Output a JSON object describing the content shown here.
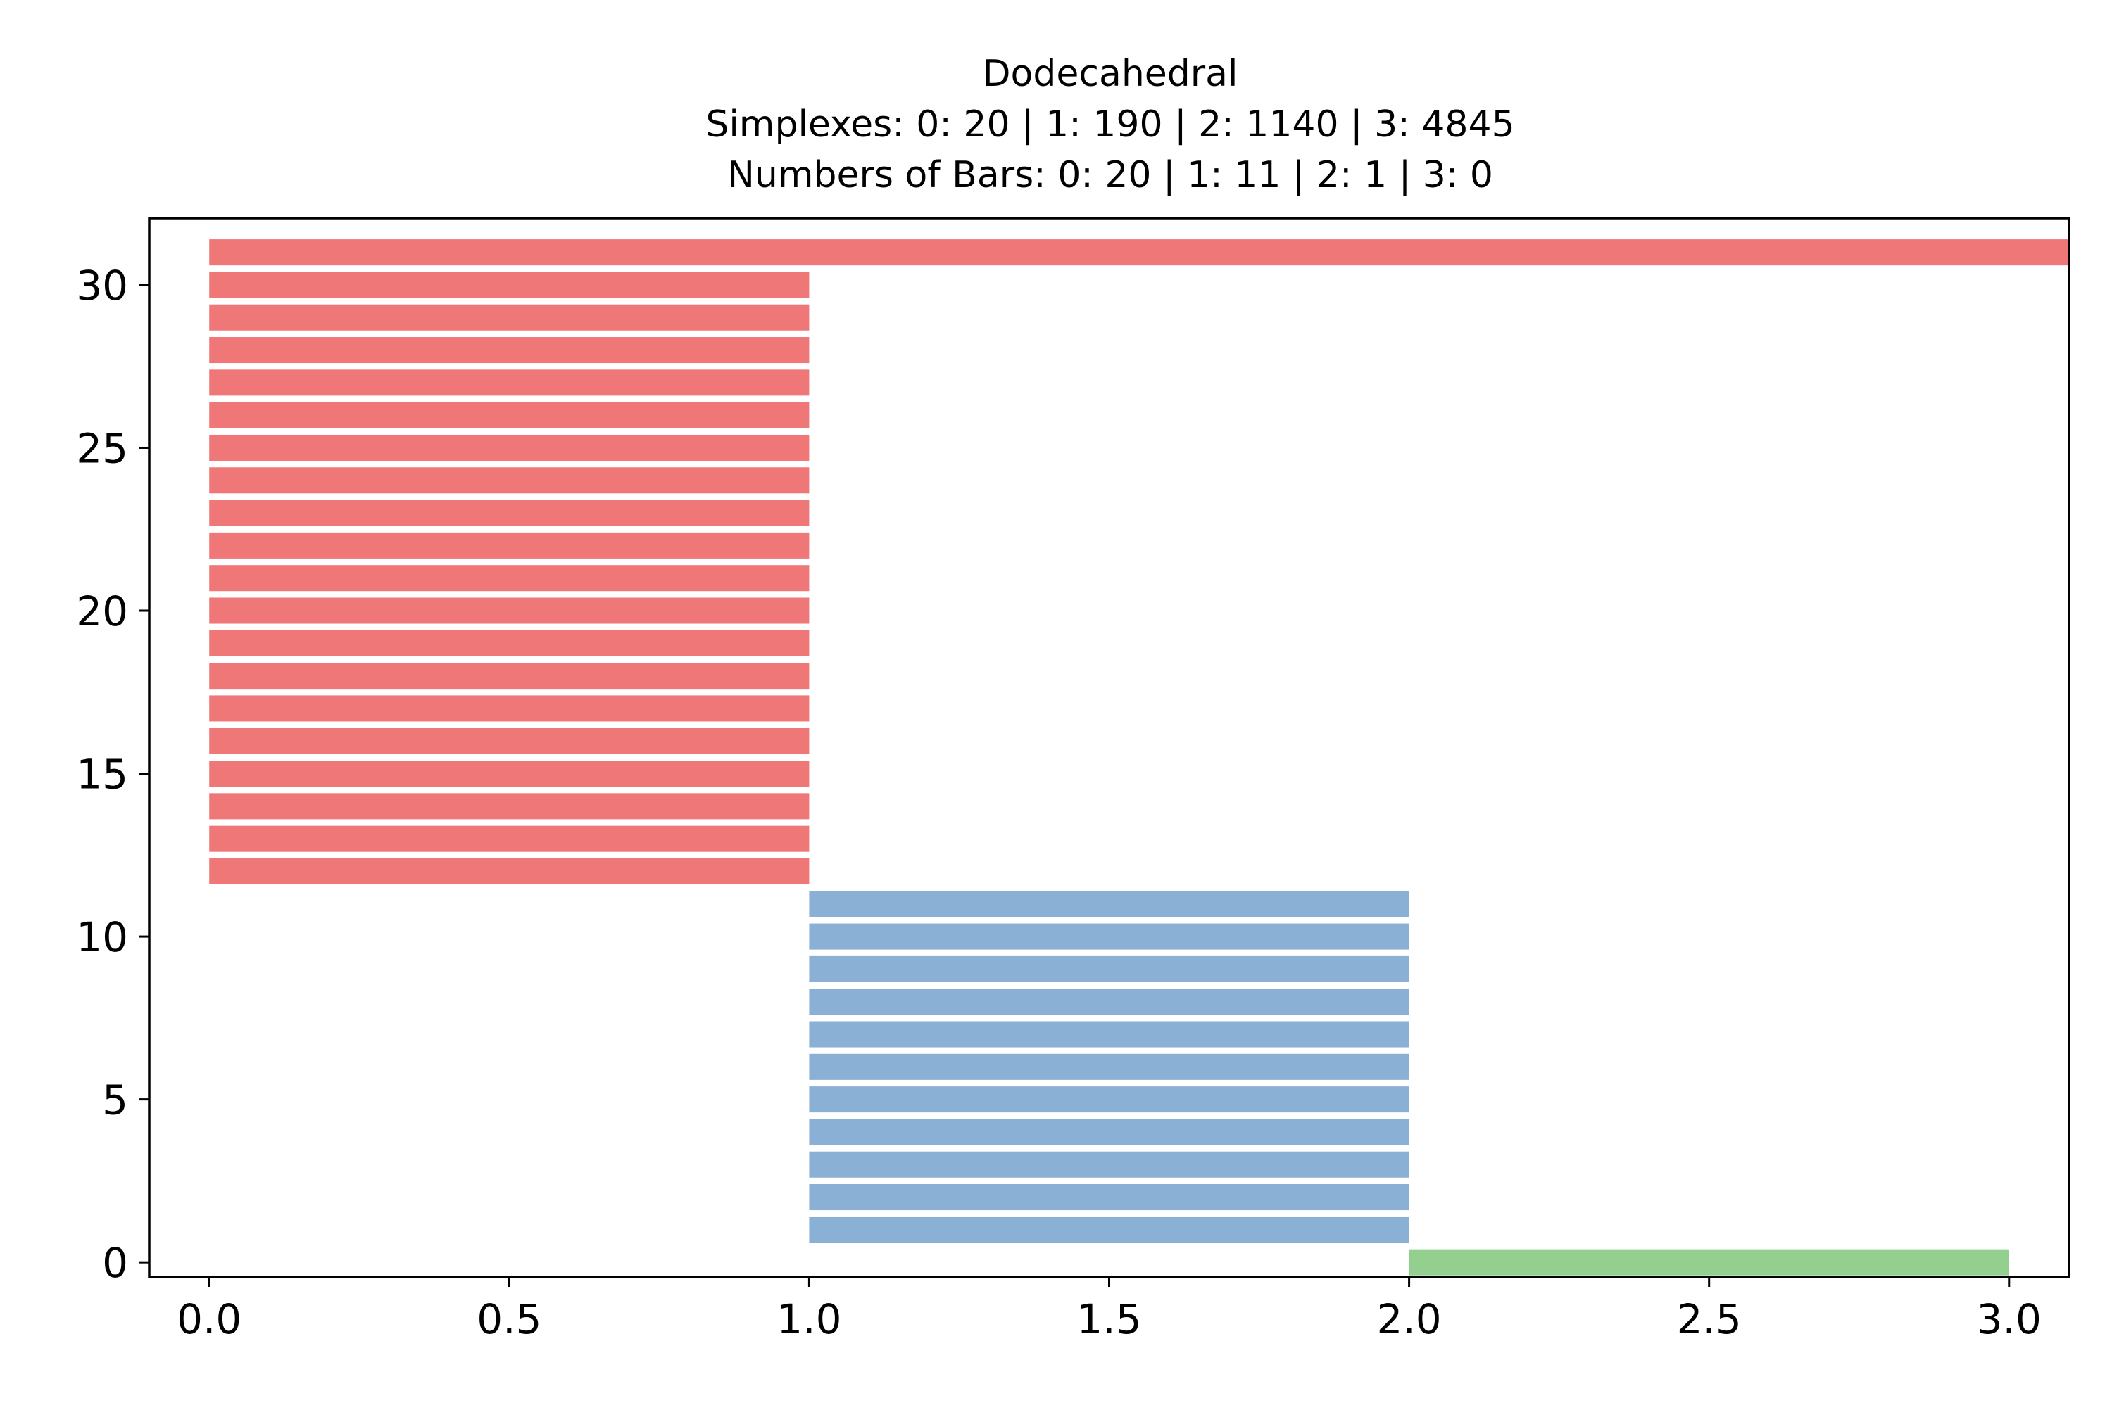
{
  "chart_data": {
    "type": "bar",
    "orientation": "horizontal",
    "title": "Dodecahedral",
    "subtitle_lines": [
      "Simplexes: 0: 20 | 1: 190 | 2: 1140 | 3: 4845",
      "Numbers of Bars: 0: 20 | 1: 11 | 2: 1 | 3: 0"
    ],
    "xlabel": "",
    "ylabel": "",
    "xlim": [
      -0.1,
      3.1
    ],
    "ylim": [
      -0.45,
      32.05
    ],
    "xticks": [
      "0.0",
      "0.5",
      "1.0",
      "1.5",
      "2.0",
      "2.5",
      "3.0"
    ],
    "yticks": [
      "0",
      "5",
      "10",
      "15",
      "20",
      "25",
      "30"
    ],
    "grid": false,
    "legend": "none",
    "colors": {
      "dim0": "#ef7777",
      "dim1": "#8ab0d5",
      "dim2": "#93cf8f"
    },
    "series": [
      {
        "dimension": 0,
        "color": "#ef7777",
        "bars": [
          {
            "y": 31,
            "start": 0.0,
            "end": 3.1
          },
          {
            "y": 30,
            "start": 0.0,
            "end": 1.0
          },
          {
            "y": 29,
            "start": 0.0,
            "end": 1.0
          },
          {
            "y": 28,
            "start": 0.0,
            "end": 1.0
          },
          {
            "y": 27,
            "start": 0.0,
            "end": 1.0
          },
          {
            "y": 26,
            "start": 0.0,
            "end": 1.0
          },
          {
            "y": 25,
            "start": 0.0,
            "end": 1.0
          },
          {
            "y": 24,
            "start": 0.0,
            "end": 1.0
          },
          {
            "y": 23,
            "start": 0.0,
            "end": 1.0
          },
          {
            "y": 22,
            "start": 0.0,
            "end": 1.0
          },
          {
            "y": 21,
            "start": 0.0,
            "end": 1.0
          },
          {
            "y": 20,
            "start": 0.0,
            "end": 1.0
          },
          {
            "y": 19,
            "start": 0.0,
            "end": 1.0
          },
          {
            "y": 18,
            "start": 0.0,
            "end": 1.0
          },
          {
            "y": 17,
            "start": 0.0,
            "end": 1.0
          },
          {
            "y": 16,
            "start": 0.0,
            "end": 1.0
          },
          {
            "y": 15,
            "start": 0.0,
            "end": 1.0
          },
          {
            "y": 14,
            "start": 0.0,
            "end": 1.0
          },
          {
            "y": 13,
            "start": 0.0,
            "end": 1.0
          },
          {
            "y": 12,
            "start": 0.0,
            "end": 1.0
          }
        ]
      },
      {
        "dimension": 1,
        "color": "#8ab0d5",
        "bars": [
          {
            "y": 11,
            "start": 1.0,
            "end": 2.0
          },
          {
            "y": 10,
            "start": 1.0,
            "end": 2.0
          },
          {
            "y": 9,
            "start": 1.0,
            "end": 2.0
          },
          {
            "y": 8,
            "start": 1.0,
            "end": 2.0
          },
          {
            "y": 7,
            "start": 1.0,
            "end": 2.0
          },
          {
            "y": 6,
            "start": 1.0,
            "end": 2.0
          },
          {
            "y": 5,
            "start": 1.0,
            "end": 2.0
          },
          {
            "y": 4,
            "start": 1.0,
            "end": 2.0
          },
          {
            "y": 3,
            "start": 1.0,
            "end": 2.0
          },
          {
            "y": 2,
            "start": 1.0,
            "end": 2.0
          },
          {
            "y": 1,
            "start": 1.0,
            "end": 2.0
          }
        ]
      },
      {
        "dimension": 2,
        "color": "#93cf8f",
        "bars": [
          {
            "y": 0,
            "start": 2.0,
            "end": 3.0
          }
        ]
      }
    ]
  }
}
